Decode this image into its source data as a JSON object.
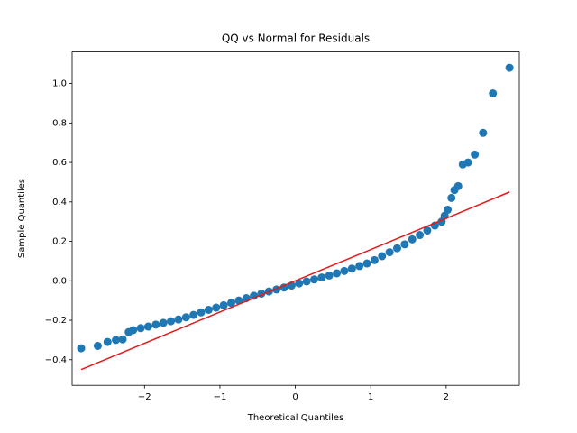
{
  "chart_data": {
    "type": "scatter",
    "title": "QQ vs Normal for Residuals",
    "x_label": "Theoretical Quantiles",
    "y_label": "Sample Quantiles",
    "xlim": [
      -2.96,
      2.97
    ],
    "ylim": [
      -0.53,
      1.16
    ],
    "xticks": [
      {
        "value": -2,
        "label": "−2"
      },
      {
        "value": -1,
        "label": "−1"
      },
      {
        "value": 0,
        "label": "0"
      },
      {
        "value": 1,
        "label": "1"
      },
      {
        "value": 2,
        "label": "2"
      }
    ],
    "yticks": [
      {
        "value": -0.4,
        "label": "−0.4"
      },
      {
        "value": -0.2,
        "label": "−0.2"
      },
      {
        "value": 0,
        "label": "0.0"
      },
      0.2,
      0.4,
      0.6,
      0.8,
      {
        "value": 1,
        "label": "1.0"
      }
    ],
    "points": {
      "color": "#1f77b4",
      "x": [
        -2.84,
        -2.62,
        -2.49,
        -2.38,
        -2.29,
        -2.21,
        -2.15,
        -2.05,
        -1.95,
        -1.85,
        -1.75,
        -1.65,
        -1.55,
        -1.45,
        -1.35,
        -1.25,
        -1.15,
        -1.05,
        -0.95,
        -0.85,
        -0.75,
        -0.65,
        -0.55,
        -0.45,
        -0.35,
        -0.25,
        -0.15,
        -0.05,
        0.05,
        0.15,
        0.25,
        0.35,
        0.45,
        0.55,
        0.65,
        0.75,
        0.85,
        0.95,
        1.05,
        1.15,
        1.25,
        1.35,
        1.45,
        1.55,
        1.65,
        1.75,
        1.85,
        1.94,
        1.98,
        2.02,
        2.07,
        2.11,
        2.16,
        2.22,
        2.29,
        2.38,
        2.49,
        2.62,
        2.84
      ],
      "y": [
        -0.342,
        -0.33,
        -0.31,
        -0.3,
        -0.297,
        -0.26,
        -0.25,
        -0.24,
        -0.232,
        -0.222,
        -0.213,
        -0.205,
        -0.196,
        -0.185,
        -0.173,
        -0.16,
        -0.147,
        -0.136,
        -0.124,
        -0.112,
        -0.1,
        -0.088,
        -0.076,
        -0.065,
        -0.054,
        -0.044,
        -0.034,
        -0.024,
        -0.013,
        -0.003,
        0.007,
        0.017,
        0.027,
        0.038,
        0.05,
        0.062,
        0.075,
        0.088,
        0.105,
        0.125,
        0.145,
        0.165,
        0.185,
        0.21,
        0.232,
        0.255,
        0.28,
        0.3,
        0.33,
        0.36,
        0.42,
        0.46,
        0.48,
        0.59,
        0.6,
        0.64,
        0.75,
        0.95,
        1.08
      ]
    },
    "fit_line": {
      "color": "#e41a1c",
      "x": [
        -2.84,
        2.84
      ],
      "y": [
        -0.45,
        0.45
      ]
    }
  }
}
